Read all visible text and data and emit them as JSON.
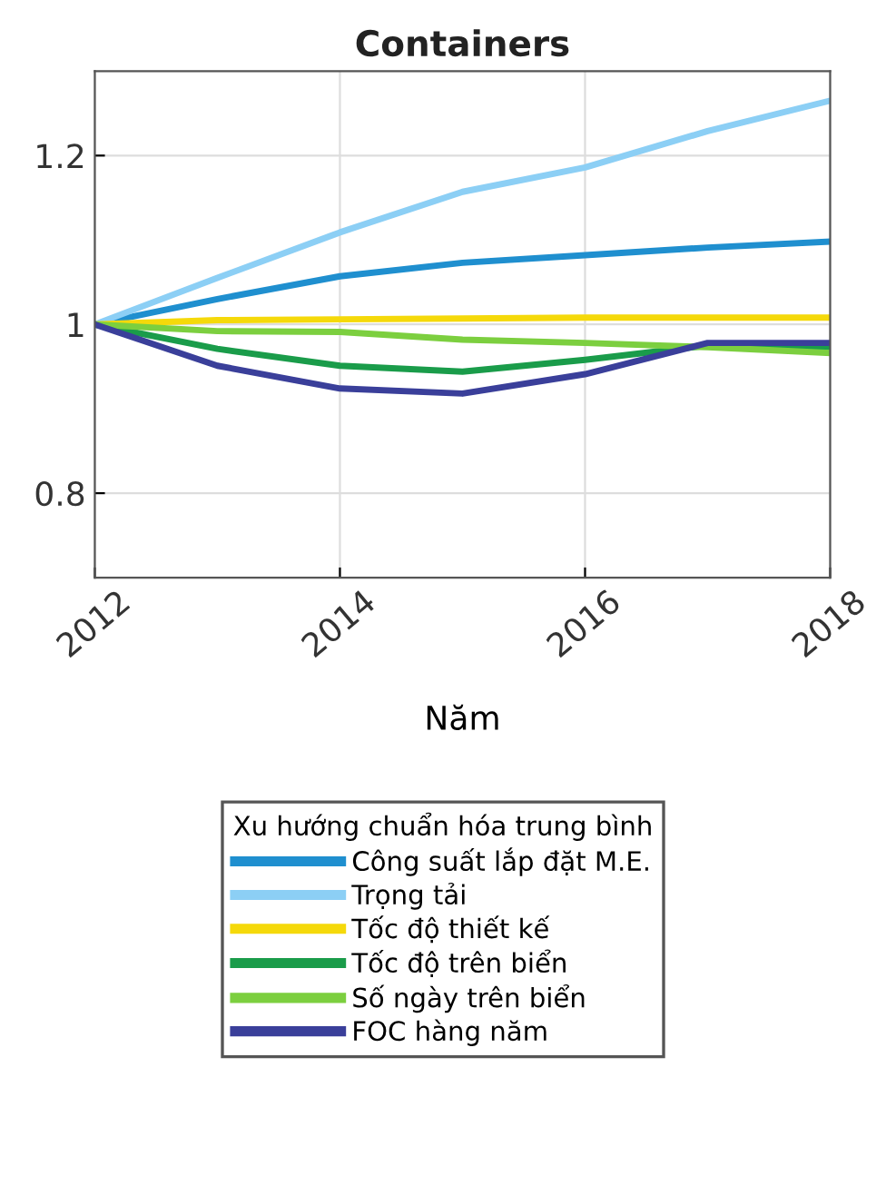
{
  "chart_data": {
    "type": "line",
    "title": "Containers",
    "xlabel": "Năm",
    "legend_title": "Xu hướng chuẩn hóa trung bình",
    "x": [
      2012,
      2013,
      2014,
      2015,
      2016,
      2017,
      2018
    ],
    "series": [
      {
        "name": "Công suất lắp đặt M.E.",
        "color": "#1f8fcf",
        "values": [
          1,
          1.03,
          1.057,
          1.073,
          1.082,
          1.091,
          1.098
        ]
      },
      {
        "name": "Trọng tải",
        "color": "#8ccff5",
        "values": [
          1,
          1.055,
          1.109,
          1.157,
          1.186,
          1.229,
          1.265
        ]
      },
      {
        "name": "Tốc độ thiết kế",
        "color": "#f5d90a",
        "values": [
          1,
          1.005,
          1.006,
          1.007,
          1.008,
          1.008,
          1.008
        ]
      },
      {
        "name": "Tốc độ trên biển",
        "color": "#1a9c4a",
        "values": [
          1,
          0.971,
          0.951,
          0.944,
          0.958,
          0.975,
          0.973
        ]
      },
      {
        "name": "Số ngày trên biển",
        "color": "#7ccf3f",
        "values": [
          1,
          0.992,
          0.991,
          0.982,
          0.978,
          0.973,
          0.966
        ]
      },
      {
        "name": "FOC hàng năm",
        "color": "#3a3f9a",
        "values": [
          1,
          0.951,
          0.924,
          0.918,
          0.941,
          0.978,
          0.978
        ]
      }
    ],
    "xlim": [
      2012,
      2018
    ],
    "xticks": [
      2012,
      2014,
      2016,
      2018
    ],
    "ylim": [
      0.7,
      1.3
    ],
    "yticks": [
      0.8,
      1,
      1.2
    ],
    "grid": true,
    "legend": "bottom",
    "line_style": "solid",
    "marker": "none"
  }
}
